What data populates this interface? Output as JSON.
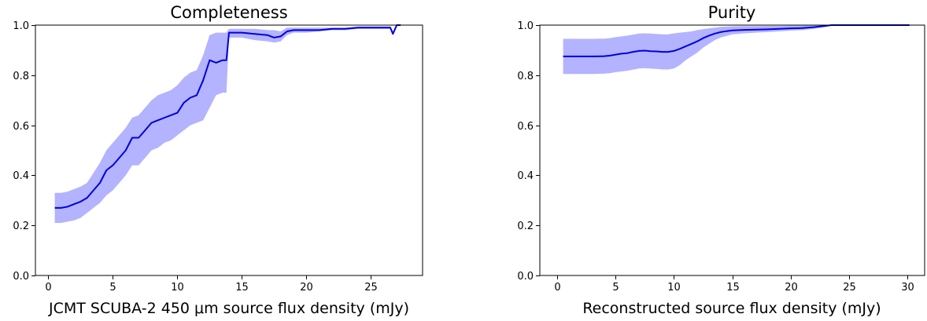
{
  "colors": {
    "line": "#0000dd",
    "band": "#b3b3ff"
  },
  "chart_data": [
    {
      "type": "line",
      "title": "Completeness",
      "xlabel": "JCMT SCUBA-2 450 μm source flux density (mJy)",
      "ylabel": "",
      "xlim": [
        -1,
        29
      ],
      "ylim": [
        0,
        1
      ],
      "xticks": [
        0,
        5,
        10,
        15,
        20,
        25
      ],
      "yticks": [
        0.0,
        0.2,
        0.4,
        0.6,
        0.8,
        1.0
      ],
      "xtick_labels": [
        "0",
        "5",
        "10",
        "15",
        "20",
        "25"
      ],
      "ytick_labels": [
        "0.0",
        "0.2",
        "0.4",
        "0.6",
        "0.8",
        "1.0"
      ],
      "grid": false,
      "series": [
        {
          "x": [
            0.5,
            1.0,
            1.5,
            2.0,
            2.5,
            3.0,
            3.5,
            4.0,
            4.5,
            5.0,
            5.5,
            6.0,
            6.5,
            7.0,
            7.5,
            8.0,
            8.5,
            9.0,
            9.5,
            10.0,
            10.5,
            11.0,
            11.5,
            12.0,
            12.5,
            13.0,
            13.5,
            13.8,
            14.0,
            15.0,
            16.0,
            17.0,
            17.5,
            18.0,
            18.5,
            19.0,
            20.0,
            21.0,
            22.0,
            23.0,
            24.0,
            25.0,
            26.0,
            26.5,
            26.7,
            27.0,
            27.3
          ],
          "y": [
            0.27,
            0.27,
            0.275,
            0.285,
            0.295,
            0.31,
            0.34,
            0.37,
            0.42,
            0.44,
            0.47,
            0.5,
            0.55,
            0.55,
            0.58,
            0.61,
            0.62,
            0.63,
            0.64,
            0.65,
            0.69,
            0.71,
            0.72,
            0.78,
            0.86,
            0.85,
            0.86,
            0.86,
            0.97,
            0.97,
            0.965,
            0.96,
            0.95,
            0.955,
            0.975,
            0.98,
            0.98,
            0.98,
            0.985,
            0.985,
            0.99,
            0.99,
            0.99,
            0.99,
            0.965,
            1.0,
            1.0
          ],
          "lower": [
            0.21,
            0.21,
            0.215,
            0.22,
            0.23,
            0.25,
            0.27,
            0.29,
            0.32,
            0.34,
            0.37,
            0.4,
            0.44,
            0.44,
            0.47,
            0.5,
            0.51,
            0.53,
            0.54,
            0.56,
            0.58,
            0.6,
            0.61,
            0.62,
            0.67,
            0.72,
            0.73,
            0.73,
            0.95,
            0.95,
            0.94,
            0.935,
            0.93,
            0.935,
            0.96,
            0.97,
            0.97,
            0.975,
            0.98,
            0.98,
            0.985,
            0.985,
            0.985,
            0.985,
            0.96,
            1.0,
            1.0
          ],
          "upper": [
            0.33,
            0.33,
            0.335,
            0.345,
            0.355,
            0.37,
            0.41,
            0.45,
            0.5,
            0.53,
            0.56,
            0.59,
            0.63,
            0.64,
            0.67,
            0.7,
            0.72,
            0.73,
            0.74,
            0.76,
            0.79,
            0.81,
            0.82,
            0.88,
            0.96,
            0.97,
            0.97,
            0.97,
            0.985,
            0.985,
            0.985,
            0.98,
            0.98,
            0.975,
            0.99,
            0.99,
            0.99,
            0.99,
            0.99,
            0.99,
            0.995,
            0.995,
            0.995,
            0.995,
            0.975,
            1.0,
            1.0
          ]
        }
      ]
    },
    {
      "type": "line",
      "title": "Purity",
      "xlabel": "Reconstructed source flux density (mJy)",
      "ylabel": "",
      "xlim": [
        -1.5,
        31.5
      ],
      "ylim": [
        0,
        1
      ],
      "xticks": [
        0,
        5,
        10,
        15,
        20,
        25,
        30
      ],
      "yticks": [
        0.0,
        0.2,
        0.4,
        0.6,
        0.8,
        1.0
      ],
      "xtick_labels": [
        "0",
        "5",
        "10",
        "15",
        "20",
        "25",
        "30"
      ],
      "ytick_labels": [
        "0.0",
        "0.2",
        "0.4",
        "0.6",
        "0.8",
        "1.0"
      ],
      "grid": false,
      "series": [
        {
          "x": [
            0.5,
            2,
            3,
            4,
            4.5,
            5,
            5.5,
            6,
            6.5,
            7,
            7.5,
            8,
            8.5,
            9,
            9.5,
            10,
            10.5,
            11,
            11.5,
            12,
            12.5,
            13,
            13.5,
            14,
            14.5,
            15,
            16,
            17,
            18,
            19,
            20,
            21,
            22,
            23,
            23.5,
            24,
            25,
            26,
            27,
            28,
            29,
            30.2
          ],
          "y": [
            0.875,
            0.875,
            0.875,
            0.876,
            0.878,
            0.882,
            0.886,
            0.888,
            0.893,
            0.897,
            0.898,
            0.896,
            0.895,
            0.893,
            0.893,
            0.897,
            0.905,
            0.915,
            0.925,
            0.935,
            0.948,
            0.958,
            0.966,
            0.972,
            0.976,
            0.979,
            0.981,
            0.982,
            0.983,
            0.985,
            0.987,
            0.988,
            0.992,
            0.997,
            1.0,
            1.0,
            1.0,
            1.0,
            1.0,
            1.0,
            1.0,
            1.0
          ],
          "lower": [
            0.805,
            0.805,
            0.805,
            0.806,
            0.808,
            0.812,
            0.815,
            0.818,
            0.822,
            0.827,
            0.828,
            0.826,
            0.825,
            0.823,
            0.823,
            0.827,
            0.84,
            0.86,
            0.875,
            0.89,
            0.91,
            0.925,
            0.94,
            0.95,
            0.957,
            0.963,
            0.967,
            0.97,
            0.972,
            0.975,
            0.978,
            0.98,
            0.985,
            0.993,
            0.998,
            1.0,
            1.0,
            1.0,
            1.0,
            1.0,
            1.0,
            1.0
          ],
          "upper": [
            0.945,
            0.945,
            0.945,
            0.946,
            0.948,
            0.952,
            0.955,
            0.958,
            0.962,
            0.966,
            0.967,
            0.966,
            0.965,
            0.963,
            0.963,
            0.967,
            0.97,
            0.972,
            0.975,
            0.98,
            0.984,
            0.987,
            0.99,
            0.993,
            0.994,
            0.995,
            0.996,
            0.996,
            0.997,
            0.997,
            0.998,
            0.998,
            0.999,
            1.0,
            1.0,
            1.0,
            1.0,
            1.0,
            1.0,
            1.0,
            1.0,
            1.0
          ]
        }
      ]
    }
  ]
}
